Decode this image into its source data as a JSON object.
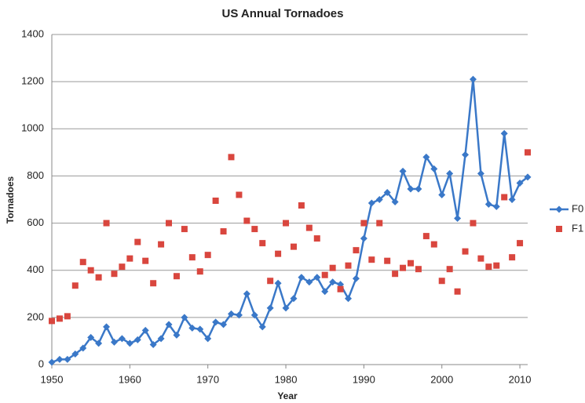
{
  "chart_data": {
    "type": "line",
    "title": "US Annual Tornadoes",
    "x_label": "Year",
    "y_label": "Tornadoes",
    "x": [
      1950,
      1951,
      1952,
      1953,
      1954,
      1955,
      1956,
      1957,
      1958,
      1959,
      1960,
      1961,
      1962,
      1963,
      1964,
      1965,
      1966,
      1967,
      1968,
      1969,
      1970,
      1971,
      1972,
      1973,
      1974,
      1975,
      1976,
      1977,
      1978,
      1979,
      1980,
      1981,
      1982,
      1983,
      1984,
      1985,
      1986,
      1987,
      1988,
      1989,
      1990,
      1991,
      1992,
      1993,
      1994,
      1995,
      1996,
      1997,
      1998,
      1999,
      2000,
      2001,
      2002,
      2003,
      2004,
      2005,
      2006,
      2007,
      2008,
      2009,
      2010,
      2011
    ],
    "series": [
      {
        "name": "F0",
        "color": "#3a78c8",
        "marker": "diamond",
        "show_line": true,
        "values": [
          10,
          22,
          22,
          45,
          70,
          115,
          90,
          160,
          95,
          110,
          90,
          105,
          145,
          85,
          110,
          170,
          125,
          200,
          155,
          150,
          110,
          180,
          170,
          215,
          210,
          300,
          210,
          160,
          240,
          345,
          240,
          280,
          370,
          350,
          370,
          310,
          350,
          340,
          280,
          365,
          535,
          685,
          700,
          730,
          690,
          820,
          745,
          745,
          880,
          830,
          720,
          810,
          620,
          890,
          1210,
          810,
          680,
          670,
          980,
          700,
          770,
          795
        ]
      },
      {
        "name": "F1",
        "color": "#d9463e",
        "marker": "square",
        "show_line": false,
        "values": [
          185,
          195,
          205,
          335,
          435,
          400,
          370,
          600,
          385,
          415,
          450,
          520,
          440,
          345,
          510,
          600,
          375,
          575,
          455,
          395,
          465,
          695,
          565,
          880,
          720,
          610,
          575,
          515,
          355,
          470,
          600,
          500,
          675,
          580,
          535,
          380,
          410,
          320,
          420,
          485,
          600,
          445,
          600,
          440,
          385,
          410,
          430,
          405,
          545,
          510,
          355,
          405,
          310,
          480,
          600,
          450,
          415,
          420,
          710,
          455,
          515,
          900
        ]
      }
    ],
    "xlim": [
      1950,
      2011
    ],
    "xticks": [
      1950,
      1960,
      1970,
      1980,
      1990,
      2000,
      2010
    ],
    "ylim": [
      0,
      1400
    ],
    "yticks": [
      0,
      200,
      400,
      600,
      800,
      1000,
      1200,
      1400
    ],
    "grid": true,
    "legend": "right"
  }
}
